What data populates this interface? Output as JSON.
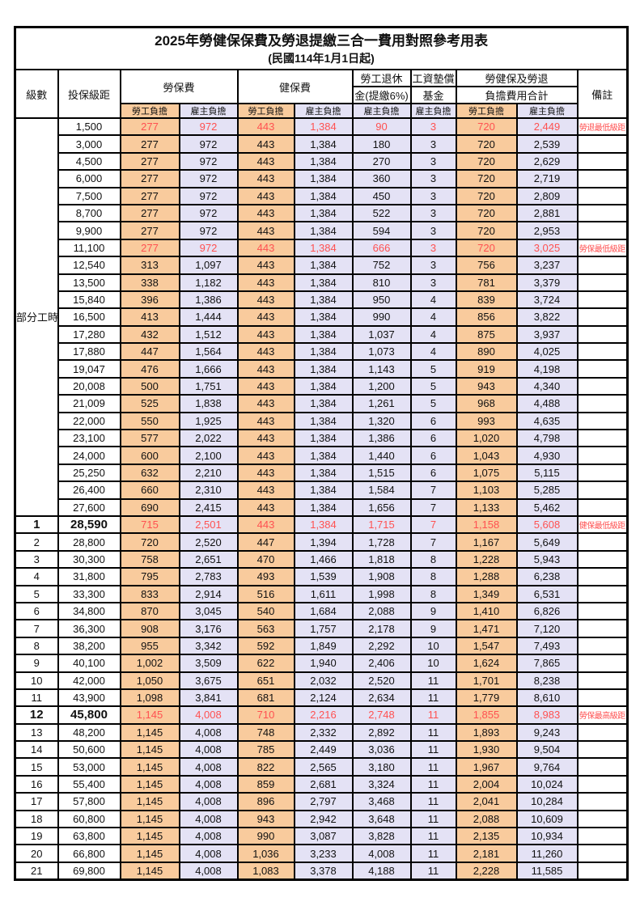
{
  "title": "2025年勞健保保費及勞退提繳三合一費用對照參考用表",
  "subtitle": "(民國114年1月1日起)",
  "colors": {
    "employee_bg": "#F9CB9D",
    "employer_bg": "#E4E2F5",
    "highlight_text": "#FF5151",
    "border": "#000000"
  },
  "columns": {
    "level": "級數",
    "bracket": "投保級距",
    "labor": "勞保費",
    "health": "健保費",
    "pension_l1": "勞工退休",
    "pension_l2": "金(提繳6%)",
    "fund_l1": "工資墊償",
    "fund_l2": "基金",
    "total_l1": "勞健保及勞退",
    "total_l2": "負擔費用合計",
    "remarks": "備註",
    "employee": "勞工負擔",
    "employer": "雇主負擔"
  },
  "part_time_label": "部分工時",
  "part_time_rowspan": 23,
  "rows": [
    {
      "lv": "",
      "br": "1,500",
      "vals": [
        "277",
        "972",
        "443",
        "1,384",
        "90",
        "3",
        "720",
        "2,449"
      ],
      "note": "勞退最低級距",
      "red": true,
      "em": false
    },
    {
      "lv": "",
      "br": "3,000",
      "vals": [
        "277",
        "972",
        "443",
        "1,384",
        "180",
        "3",
        "720",
        "2,539"
      ],
      "note": "",
      "red": false,
      "em": false
    },
    {
      "lv": "",
      "br": "4,500",
      "vals": [
        "277",
        "972",
        "443",
        "1,384",
        "270",
        "3",
        "720",
        "2,629"
      ],
      "note": "",
      "red": false,
      "em": false
    },
    {
      "lv": "",
      "br": "6,000",
      "vals": [
        "277",
        "972",
        "443",
        "1,384",
        "360",
        "3",
        "720",
        "2,719"
      ],
      "note": "",
      "red": false,
      "em": false
    },
    {
      "lv": "",
      "br": "7,500",
      "vals": [
        "277",
        "972",
        "443",
        "1,384",
        "450",
        "3",
        "720",
        "2,809"
      ],
      "note": "",
      "red": false,
      "em": false
    },
    {
      "lv": "",
      "br": "8,700",
      "vals": [
        "277",
        "972",
        "443",
        "1,384",
        "522",
        "3",
        "720",
        "2,881"
      ],
      "note": "",
      "red": false,
      "em": false
    },
    {
      "lv": "",
      "br": "9,900",
      "vals": [
        "277",
        "972",
        "443",
        "1,384",
        "594",
        "3",
        "720",
        "2,953"
      ],
      "note": "",
      "red": false,
      "em": false
    },
    {
      "lv": "",
      "br": "11,100",
      "vals": [
        "277",
        "972",
        "443",
        "1,384",
        "666",
        "3",
        "720",
        "3,025"
      ],
      "note": "勞保最低級距",
      "red": true,
      "em": false
    },
    {
      "lv": "",
      "br": "12,540",
      "vals": [
        "313",
        "1,097",
        "443",
        "1,384",
        "752",
        "3",
        "756",
        "3,237"
      ],
      "note": "",
      "red": false,
      "em": false
    },
    {
      "lv": "",
      "br": "13,500",
      "vals": [
        "338",
        "1,182",
        "443",
        "1,384",
        "810",
        "3",
        "781",
        "3,379"
      ],
      "note": "",
      "red": false,
      "em": false
    },
    {
      "lv": "",
      "br": "15,840",
      "vals": [
        "396",
        "1,386",
        "443",
        "1,384",
        "950",
        "4",
        "839",
        "3,724"
      ],
      "note": "",
      "red": false,
      "em": false
    },
    {
      "lv": "",
      "br": "16,500",
      "vals": [
        "413",
        "1,444",
        "443",
        "1,384",
        "990",
        "4",
        "856",
        "3,822"
      ],
      "note": "",
      "red": false,
      "em": false
    },
    {
      "lv": "",
      "br": "17,280",
      "vals": [
        "432",
        "1,512",
        "443",
        "1,384",
        "1,037",
        "4",
        "875",
        "3,937"
      ],
      "note": "",
      "red": false,
      "em": false
    },
    {
      "lv": "",
      "br": "17,880",
      "vals": [
        "447",
        "1,564",
        "443",
        "1,384",
        "1,073",
        "4",
        "890",
        "4,025"
      ],
      "note": "",
      "red": false,
      "em": false
    },
    {
      "lv": "",
      "br": "19,047",
      "vals": [
        "476",
        "1,666",
        "443",
        "1,384",
        "1,143",
        "5",
        "919",
        "4,198"
      ],
      "note": "",
      "red": false,
      "em": false
    },
    {
      "lv": "",
      "br": "20,008",
      "vals": [
        "500",
        "1,751",
        "443",
        "1,384",
        "1,200",
        "5",
        "943",
        "4,340"
      ],
      "note": "",
      "red": false,
      "em": false
    },
    {
      "lv": "",
      "br": "21,009",
      "vals": [
        "525",
        "1,838",
        "443",
        "1,384",
        "1,261",
        "5",
        "968",
        "4,488"
      ],
      "note": "",
      "red": false,
      "em": false
    },
    {
      "lv": "",
      "br": "22,000",
      "vals": [
        "550",
        "1,925",
        "443",
        "1,384",
        "1,320",
        "6",
        "993",
        "4,635"
      ],
      "note": "",
      "red": false,
      "em": false
    },
    {
      "lv": "",
      "br": "23,100",
      "vals": [
        "577",
        "2,022",
        "443",
        "1,384",
        "1,386",
        "6",
        "1,020",
        "4,798"
      ],
      "note": "",
      "red": false,
      "em": false
    },
    {
      "lv": "",
      "br": "24,000",
      "vals": [
        "600",
        "2,100",
        "443",
        "1,384",
        "1,440",
        "6",
        "1,043",
        "4,930"
      ],
      "note": "",
      "red": false,
      "em": false
    },
    {
      "lv": "",
      "br": "25,250",
      "vals": [
        "632",
        "2,210",
        "443",
        "1,384",
        "1,515",
        "6",
        "1,075",
        "5,115"
      ],
      "note": "",
      "red": false,
      "em": false
    },
    {
      "lv": "",
      "br": "26,400",
      "vals": [
        "660",
        "2,310",
        "443",
        "1,384",
        "1,584",
        "7",
        "1,103",
        "5,285"
      ],
      "note": "",
      "red": false,
      "em": false
    },
    {
      "lv": "",
      "br": "27,600",
      "vals": [
        "690",
        "2,415",
        "443",
        "1,384",
        "1,656",
        "7",
        "1,133",
        "5,462"
      ],
      "note": "",
      "red": false,
      "em": false
    },
    {
      "lv": "1",
      "br": "28,590",
      "vals": [
        "715",
        "2,501",
        "443",
        "1,384",
        "1,715",
        "7",
        "1,158",
        "5,608"
      ],
      "note": "健保最低級距",
      "red": true,
      "em": true
    },
    {
      "lv": "2",
      "br": "28,800",
      "vals": [
        "720",
        "2,520",
        "447",
        "1,394",
        "1,728",
        "7",
        "1,167",
        "5,649"
      ],
      "note": "",
      "red": false,
      "em": false
    },
    {
      "lv": "3",
      "br": "30,300",
      "vals": [
        "758",
        "2,651",
        "470",
        "1,466",
        "1,818",
        "8",
        "1,228",
        "5,943"
      ],
      "note": "",
      "red": false,
      "em": false
    },
    {
      "lv": "4",
      "br": "31,800",
      "vals": [
        "795",
        "2,783",
        "493",
        "1,539",
        "1,908",
        "8",
        "1,288",
        "6,238"
      ],
      "note": "",
      "red": false,
      "em": false
    },
    {
      "lv": "5",
      "br": "33,300",
      "vals": [
        "833",
        "2,914",
        "516",
        "1,611",
        "1,998",
        "8",
        "1,349",
        "6,531"
      ],
      "note": "",
      "red": false,
      "em": false
    },
    {
      "lv": "6",
      "br": "34,800",
      "vals": [
        "870",
        "3,045",
        "540",
        "1,684",
        "2,088",
        "9",
        "1,410",
        "6,826"
      ],
      "note": "",
      "red": false,
      "em": false
    },
    {
      "lv": "7",
      "br": "36,300",
      "vals": [
        "908",
        "3,176",
        "563",
        "1,757",
        "2,178",
        "9",
        "1,471",
        "7,120"
      ],
      "note": "",
      "red": false,
      "em": false
    },
    {
      "lv": "8",
      "br": "38,200",
      "vals": [
        "955",
        "3,342",
        "592",
        "1,849",
        "2,292",
        "10",
        "1,547",
        "7,493"
      ],
      "note": "",
      "red": false,
      "em": false
    },
    {
      "lv": "9",
      "br": "40,100",
      "vals": [
        "1,002",
        "3,509",
        "622",
        "1,940",
        "2,406",
        "10",
        "1,624",
        "7,865"
      ],
      "note": "",
      "red": false,
      "em": false
    },
    {
      "lv": "10",
      "br": "42,000",
      "vals": [
        "1,050",
        "3,675",
        "651",
        "2,032",
        "2,520",
        "11",
        "1,701",
        "8,238"
      ],
      "note": "",
      "red": false,
      "em": false
    },
    {
      "lv": "11",
      "br": "43,900",
      "vals": [
        "1,098",
        "3,841",
        "681",
        "2,124",
        "2,634",
        "11",
        "1,779",
        "8,610"
      ],
      "note": "",
      "red": false,
      "em": false
    },
    {
      "lv": "12",
      "br": "45,800",
      "vals": [
        "1,145",
        "4,008",
        "710",
        "2,216",
        "2,748",
        "11",
        "1,855",
        "8,983"
      ],
      "note": "勞保最高級距",
      "red": true,
      "em": true
    },
    {
      "lv": "13",
      "br": "48,200",
      "vals": [
        "1,145",
        "4,008",
        "748",
        "2,332",
        "2,892",
        "11",
        "1,893",
        "9,243"
      ],
      "note": "",
      "red": false,
      "em": false
    },
    {
      "lv": "14",
      "br": "50,600",
      "vals": [
        "1,145",
        "4,008",
        "785",
        "2,449",
        "3,036",
        "11",
        "1,930",
        "9,504"
      ],
      "note": "",
      "red": false,
      "em": false
    },
    {
      "lv": "15",
      "br": "53,000",
      "vals": [
        "1,145",
        "4,008",
        "822",
        "2,565",
        "3,180",
        "11",
        "1,967",
        "9,764"
      ],
      "note": "",
      "red": false,
      "em": false
    },
    {
      "lv": "16",
      "br": "55,400",
      "vals": [
        "1,145",
        "4,008",
        "859",
        "2,681",
        "3,324",
        "11",
        "2,004",
        "10,024"
      ],
      "note": "",
      "red": false,
      "em": false
    },
    {
      "lv": "17",
      "br": "57,800",
      "vals": [
        "1,145",
        "4,008",
        "896",
        "2,797",
        "3,468",
        "11",
        "2,041",
        "10,284"
      ],
      "note": "",
      "red": false,
      "em": false
    },
    {
      "lv": "18",
      "br": "60,800",
      "vals": [
        "1,145",
        "4,008",
        "943",
        "2,942",
        "3,648",
        "11",
        "2,088",
        "10,609"
      ],
      "note": "",
      "red": false,
      "em": false
    },
    {
      "lv": "19",
      "br": "63,800",
      "vals": [
        "1,145",
        "4,008",
        "990",
        "3,087",
        "3,828",
        "11",
        "2,135",
        "10,934"
      ],
      "note": "",
      "red": false,
      "em": false
    },
    {
      "lv": "20",
      "br": "66,800",
      "vals": [
        "1,145",
        "4,008",
        "1,036",
        "3,233",
        "4,008",
        "11",
        "2,181",
        "11,260"
      ],
      "note": "",
      "red": false,
      "em": false
    },
    {
      "lv": "21",
      "br": "69,800",
      "vals": [
        "1,145",
        "4,008",
        "1,083",
        "3,378",
        "4,188",
        "11",
        "2,228",
        "11,585"
      ],
      "note": "",
      "red": false,
      "em": false
    }
  ]
}
